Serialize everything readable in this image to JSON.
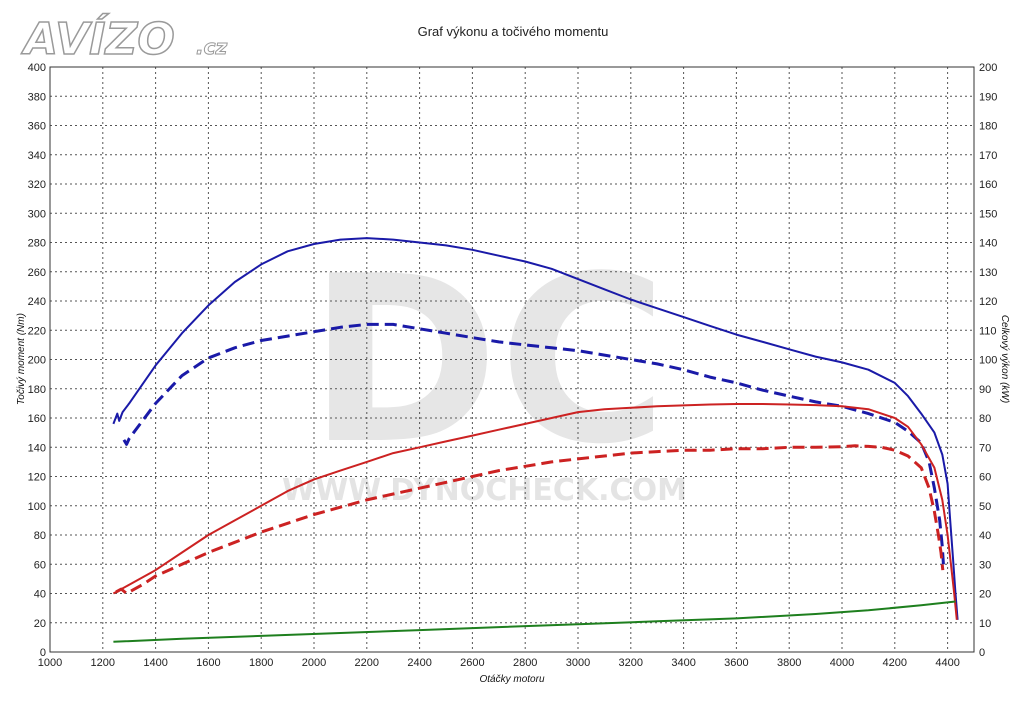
{
  "logo": {
    "text": "AVÍZO",
    "suffix": ".cz"
  },
  "watermark": {
    "big": "DC",
    "url": "WWW.DYNOCHECK.COM"
  },
  "colors": {
    "blue": "#1a1aa8",
    "red": "#cc2222",
    "green": "#1e7f1e",
    "watermark": "#e6e6e6"
  },
  "chart_data": {
    "type": "line",
    "title": "Graf výkonu a točivého momentu",
    "xlabel": "Otáčky motoru",
    "ylabel_left": "Točivý moment (Nm)",
    "ylabel_right": "Celkový výkon (kW)",
    "xlim": [
      1000,
      4500
    ],
    "ylim_left": [
      0,
      400
    ],
    "ylim_right": [
      0,
      200
    ],
    "x_ticks": [
      1000,
      1200,
      1400,
      1600,
      1800,
      2000,
      2200,
      2400,
      2600,
      2800,
      3000,
      3200,
      3400,
      3600,
      3800,
      4000,
      4200,
      4400
    ],
    "y_left_ticks": [
      0,
      20,
      40,
      60,
      80,
      100,
      120,
      140,
      160,
      180,
      200,
      220,
      240,
      260,
      280,
      300,
      320,
      340,
      360,
      380,
      400
    ],
    "y_right_ticks": [
      0,
      10,
      20,
      30,
      40,
      50,
      60,
      70,
      80,
      90,
      100,
      110,
      120,
      130,
      140,
      150,
      160,
      170,
      180,
      190,
      200
    ],
    "grid": true,
    "series": [
      {
        "axis": "left",
        "color": "#1a1aa8",
        "style": "solid",
        "points": [
          [
            1240,
            156
          ],
          [
            1255,
            163
          ],
          [
            1262,
            158
          ],
          [
            1275,
            164
          ],
          [
            1300,
            170
          ],
          [
            1400,
            196
          ],
          [
            1500,
            218
          ],
          [
            1600,
            237
          ],
          [
            1700,
            253
          ],
          [
            1800,
            265
          ],
          [
            1900,
            274
          ],
          [
            2000,
            279
          ],
          [
            2100,
            282
          ],
          [
            2200,
            283
          ],
          [
            2300,
            282
          ],
          [
            2400,
            280
          ],
          [
            2500,
            278
          ],
          [
            2600,
            275
          ],
          [
            2700,
            271
          ],
          [
            2800,
            267
          ],
          [
            2900,
            262
          ],
          [
            3000,
            255
          ],
          [
            3100,
            248
          ],
          [
            3200,
            241
          ],
          [
            3300,
            235
          ],
          [
            3400,
            229
          ],
          [
            3500,
            223
          ],
          [
            3600,
            217
          ],
          [
            3700,
            212
          ],
          [
            3800,
            207
          ],
          [
            3900,
            202
          ],
          [
            4000,
            198
          ],
          [
            4100,
            193
          ],
          [
            4200,
            184
          ],
          [
            4250,
            175
          ],
          [
            4300,
            163
          ],
          [
            4350,
            150
          ],
          [
            4380,
            135
          ],
          [
            4400,
            115
          ],
          [
            4410,
            90
          ],
          [
            4420,
            65
          ],
          [
            4430,
            40
          ],
          [
            4438,
            22
          ]
        ]
      },
      {
        "axis": "left",
        "color": "#1a1aa8",
        "style": "dashed",
        "points": [
          [
            1280,
            145
          ],
          [
            1290,
            142
          ],
          [
            1300,
            146
          ],
          [
            1350,
            158
          ],
          [
            1400,
            170
          ],
          [
            1500,
            189
          ],
          [
            1600,
            201
          ],
          [
            1700,
            208
          ],
          [
            1800,
            213
          ],
          [
            1900,
            216
          ],
          [
            2000,
            219
          ],
          [
            2100,
            222
          ],
          [
            2200,
            224
          ],
          [
            2300,
            224
          ],
          [
            2400,
            221
          ],
          [
            2500,
            218
          ],
          [
            2600,
            215
          ],
          [
            2700,
            212
          ],
          [
            2800,
            210
          ],
          [
            2900,
            208
          ],
          [
            3000,
            206
          ],
          [
            3100,
            203
          ],
          [
            3200,
            200
          ],
          [
            3300,
            197
          ],
          [
            3400,
            193
          ],
          [
            3500,
            188
          ],
          [
            3600,
            184
          ],
          [
            3700,
            179
          ],
          [
            3800,
            175
          ],
          [
            3900,
            171
          ],
          [
            4000,
            168
          ],
          [
            4100,
            163
          ],
          [
            4200,
            157
          ],
          [
            4250,
            151
          ],
          [
            4300,
            143
          ],
          [
            4330,
            130
          ],
          [
            4350,
            112
          ],
          [
            4370,
            90
          ],
          [
            4380,
            72
          ],
          [
            4385,
            58
          ]
        ]
      },
      {
        "axis": "right",
        "color": "#cc2222",
        "style": "solid",
        "points": [
          [
            1240,
            20
          ],
          [
            1300,
            23
          ],
          [
            1400,
            28
          ],
          [
            1500,
            34
          ],
          [
            1600,
            40
          ],
          [
            1700,
            45
          ],
          [
            1800,
            50
          ],
          [
            1900,
            55
          ],
          [
            2000,
            59
          ],
          [
            2100,
            62
          ],
          [
            2200,
            65
          ],
          [
            2300,
            68
          ],
          [
            2400,
            70
          ],
          [
            2500,
            72
          ],
          [
            2600,
            74
          ],
          [
            2700,
            76
          ],
          [
            2800,
            78
          ],
          [
            2900,
            80
          ],
          [
            3000,
            82
          ],
          [
            3100,
            83
          ],
          [
            3200,
            83.5
          ],
          [
            3300,
            84
          ],
          [
            3400,
            84.3
          ],
          [
            3500,
            84.6
          ],
          [
            3600,
            84.8
          ],
          [
            3700,
            84.8
          ],
          [
            3800,
            84.6
          ],
          [
            3900,
            84.4
          ],
          [
            4000,
            84
          ],
          [
            4100,
            83
          ],
          [
            4200,
            80
          ],
          [
            4250,
            77
          ],
          [
            4300,
            71
          ],
          [
            4350,
            63
          ],
          [
            4380,
            52
          ],
          [
            4400,
            40
          ],
          [
            4415,
            28
          ],
          [
            4425,
            20
          ],
          [
            4435,
            11
          ]
        ]
      },
      {
        "axis": "right",
        "color": "#cc2222",
        "style": "dashed",
        "points": [
          [
            1250,
            20.5
          ],
          [
            1270,
            21.5
          ],
          [
            1290,
            20
          ],
          [
            1310,
            21
          ],
          [
            1350,
            23
          ],
          [
            1400,
            26
          ],
          [
            1500,
            30
          ],
          [
            1600,
            34
          ],
          [
            1700,
            37.5
          ],
          [
            1800,
            41
          ],
          [
            1900,
            44
          ],
          [
            2000,
            47
          ],
          [
            2100,
            49.5
          ],
          [
            2200,
            52
          ],
          [
            2300,
            54
          ],
          [
            2400,
            56
          ],
          [
            2500,
            58
          ],
          [
            2600,
            60
          ],
          [
            2700,
            62
          ],
          [
            2800,
            63.5
          ],
          [
            2900,
            65
          ],
          [
            3000,
            66
          ],
          [
            3100,
            67
          ],
          [
            3200,
            68
          ],
          [
            3300,
            68.5
          ],
          [
            3400,
            69
          ],
          [
            3500,
            69
          ],
          [
            3600,
            69.5
          ],
          [
            3700,
            69.5
          ],
          [
            3800,
            70
          ],
          [
            3900,
            70
          ],
          [
            4000,
            70.2
          ],
          [
            4050,
            70.5
          ],
          [
            4100,
            70.3
          ],
          [
            4150,
            70
          ],
          [
            4200,
            69
          ],
          [
            4250,
            67
          ],
          [
            4300,
            63
          ],
          [
            4330,
            56
          ],
          [
            4350,
            48
          ],
          [
            4365,
            40
          ],
          [
            4375,
            34
          ],
          [
            4382,
            28
          ]
        ]
      },
      {
        "axis": "left",
        "color": "#1e7f1e",
        "style": "solid",
        "points": [
          [
            1240,
            7
          ],
          [
            1500,
            9
          ],
          [
            1800,
            11
          ],
          [
            2100,
            13
          ],
          [
            2400,
            15
          ],
          [
            2700,
            17
          ],
          [
            3000,
            19
          ],
          [
            3300,
            21
          ],
          [
            3600,
            23
          ],
          [
            3900,
            26
          ],
          [
            4100,
            28.5
          ],
          [
            4300,
            32
          ],
          [
            4430,
            34.5
          ]
        ]
      }
    ]
  }
}
